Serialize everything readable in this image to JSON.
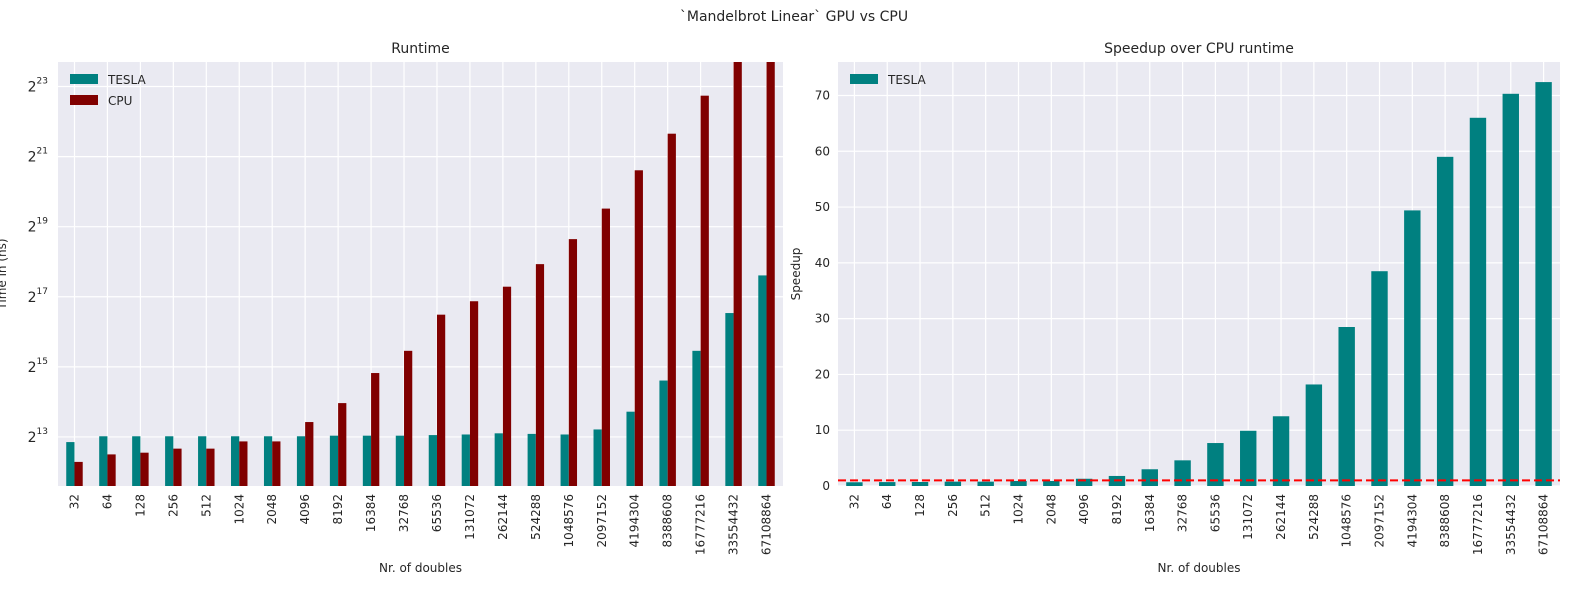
{
  "suptitle": "`Mandelbrot Linear` GPU vs CPU",
  "chart_data": [
    {
      "type": "bar",
      "title": "Runtime",
      "xlabel": "Nr. of doubles",
      "ylabel": "Time in (ns)",
      "yscale": "log2",
      "ylim_exp": [
        11.6,
        23.7
      ],
      "ytick_exponents": [
        13,
        15,
        17,
        19,
        21,
        23
      ],
      "categories": [
        "32",
        "64",
        "128",
        "256",
        "512",
        "1024",
        "2048",
        "4096",
        "8192",
        "16384",
        "32768",
        "65536",
        "131072",
        "262144",
        "524288",
        "1048576",
        "2097152",
        "4194304",
        "8388608",
        "16777216",
        "33554432",
        "67108864"
      ],
      "series": [
        {
          "name": "TESLA",
          "color": "#008080",
          "values": [
            7400,
            8300,
            8300,
            8300,
            8300,
            8300,
            8300,
            8300,
            8400,
            8400,
            8400,
            8500,
            8600,
            8800,
            8700,
            8600,
            9500,
            13500,
            25000,
            45000,
            95000,
            200000
          ]
        },
        {
          "name": "CPU",
          "color": "#800000",
          "values": [
            5000,
            5800,
            6000,
            6500,
            6500,
            7500,
            7500,
            11000,
            16000,
            29000,
            45000,
            92000,
            120000,
            160000,
            250000,
            410000,
            750000,
            1600000,
            3300000,
            7000000,
            15000000,
            32000000
          ]
        }
      ],
      "legend": "top-left",
      "grid": true
    },
    {
      "type": "bar",
      "title": "Speedup over CPU runtime",
      "xlabel": "Nr. of doubles",
      "ylabel": "Speedup",
      "ylim": [
        0,
        76
      ],
      "yticks": [
        0,
        10,
        20,
        30,
        40,
        50,
        60,
        70
      ],
      "categories": [
        "32",
        "64",
        "128",
        "256",
        "512",
        "1024",
        "2048",
        "4096",
        "8192",
        "16384",
        "32768",
        "65536",
        "131072",
        "262144",
        "524288",
        "1048576",
        "2097152",
        "4194304",
        "8388608",
        "16777216",
        "33554432",
        "67108864"
      ],
      "series": [
        {
          "name": "TESLA",
          "color": "#008080",
          "values": [
            0.67,
            0.7,
            0.72,
            0.78,
            0.78,
            0.9,
            0.9,
            1.3,
            1.8,
            3.0,
            4.6,
            7.7,
            9.9,
            12.5,
            18.2,
            28.5,
            38.5,
            49.4,
            59.0,
            66.0,
            70.3,
            72.4
          ]
        }
      ],
      "reference_line": {
        "y": 1,
        "color": "#ff0000",
        "style": "dashed"
      },
      "legend": "top-left",
      "grid": true
    }
  ]
}
